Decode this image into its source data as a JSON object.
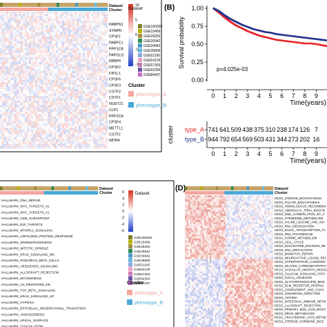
{
  "colors": {
    "heat_low": "#1f3fc4",
    "heat_mid": "#ffffff",
    "heat_high": "#d7301f",
    "dataset_strip": "#c7a46a",
    "cluster_a": "#f4a6a0",
    "cluster_b": "#4aa8d8",
    "km_type_a": "#e8252a",
    "km_type_b": "#25348c",
    "panel_border": "#000000"
  },
  "panel_a": {
    "top_labels": [
      "Dataset",
      "Cluster"
    ],
    "genes": [
      "PABPN1",
      "SYMPK",
      "CPSF1",
      "PABPC1",
      "PPP1CB",
      "PAPOLG",
      "RBBP6",
      "CPSF2",
      "FIP1L1",
      "CPSF6",
      "CPSF3",
      "CSTF3",
      "CSTF1",
      "NUDT21",
      "CLP1",
      "PPP1CA",
      "CPSF4",
      "METTL1",
      "CSTF2",
      "WDR4"
    ],
    "scale_ticks": [
      "10",
      "5",
      "0",
      "-5",
      "-10"
    ],
    "dataset_legend": [
      {
        "name": "GSE100935",
        "color": "#7f7f2a"
      },
      {
        "name": "GSE15459",
        "color": "#b5b300"
      },
      {
        "name": "GSE26253",
        "color": "#a58b3e"
      },
      {
        "name": "GSE26942",
        "color": "#2e8b57"
      },
      {
        "name": "GSE34942",
        "color": "#4a9ac9"
      },
      {
        "name": "GSE35809",
        "color": "#66b8e0"
      },
      {
        "name": "GSE51105",
        "color": "#8aa8d8"
      },
      {
        "name": "GSE54129",
        "color": "#e8a0c8"
      },
      {
        "name": "GSE57303",
        "color": "#c97ab5"
      },
      {
        "name": "GSE62254",
        "color": "#6a51a3"
      },
      {
        "name": "GSE84437",
        "color": "#c46ec9"
      }
    ],
    "cluster_legend_title": "Cluster",
    "cluster_legend": [
      {
        "name": "phenotype_A",
        "color": "#f4a6a0"
      },
      {
        "name": "phenotype_B",
        "color": "#4aa8d8"
      }
    ]
  },
  "panel_b": {
    "letter": "(B)",
    "ylabel": "Survival probability",
    "xlabel": "Time(years)",
    "y_ticks": [
      "1.00",
      "0.75",
      "0.50",
      "0.25",
      "0.00"
    ],
    "x_ticks": [
      "0",
      "1",
      "2",
      "3",
      "4",
      "5",
      "6",
      "7",
      "8",
      "9"
    ],
    "pvalue": "p=4.025e-03",
    "risk_title": "cluster",
    "risk_rows": [
      {
        "label": "type_A",
        "color": "#e8252a",
        "values": [
          "741",
          "641",
          "509",
          "438",
          "375",
          "310",
          "238",
          "174",
          "126",
          "7"
        ]
      },
      {
        "label": "type_B",
        "color": "#25348c",
        "values": [
          "944",
          "792",
          "654",
          "569",
          "503",
          "431",
          "344",
          "273",
          "202",
          "16"
        ]
      }
    ],
    "risk_xlabel": "Time(years)"
  },
  "panel_c": {
    "top_labels": [
      "Dataset",
      "Cluster"
    ],
    "pathways": [
      "HALLMARK_DNA_REPAIR",
      "HALLMARK_MYC_TARGETS_V2",
      "HALLMARK_MYC_TARGETS_V1",
      "HALLMARK_G2M_CHECKPOINT",
      "HALLMARK_E2F_TARGETS",
      "HALLMARK_MTORC1_SIGNALING",
      "HALLMARK_UNFOLDED_PROTEIN_RESPONSE",
      "HALLMARK_SPERMATOGENESIS",
      "HALLMARK_MITOTIC_SPINDLE",
      "HALLMARK_KRAS_SIGNALING_DN",
      "HALLMARK_PANCREAS_BETA_CELLS",
      "HALLMARK_HEDGEHOG_SIGNALING",
      "HALLMARK_ALLOGRAFT_REJECTION",
      "HALLMARK_MYOGENESIS",
      "HALLMARK_UV_RESPONSE_DN",
      "HALLMARK_TGF_BETA_SIGNALING",
      "HALLMARK_KRAS_SIGNALING_UP",
      "HALLMARK_HYPOXIA",
      "HALLMARK_EPITHELIAL_MESENCHYMAL_TRANSITION",
      "HALLMARK_ANGIOGENESIS",
      "HALLMARK_APICAL_SURFACE",
      "HALLMARK_COAGULATION"
    ],
    "scale_ticks": [
      "6",
      "4",
      "2",
      "0",
      "-2",
      "-4",
      "-6"
    ],
    "dataset_legend": [
      {
        "name": "GSE100935",
        "color": "#7f7f2a"
      },
      {
        "name": "GSE15459",
        "color": "#b5b300"
      },
      {
        "name": "GSE26253",
        "color": "#a58b3e"
      },
      {
        "name": "GSE26942",
        "color": "#2e8b57"
      },
      {
        "name": "GSE34942",
        "color": "#4a9ac9"
      },
      {
        "name": "GSE35809",
        "color": "#66b8e0"
      },
      {
        "name": "GSE51105",
        "color": "#8aa8d8"
      },
      {
        "name": "GSE54129",
        "color": "#e8a0c8"
      },
      {
        "name": "GSE57303",
        "color": "#c97ab5"
      },
      {
        "name": "GSE62254",
        "color": "#6a51a3"
      },
      {
        "name": "GSE84437",
        "color": "#c46ec9"
      }
    ],
    "cluster_legend_title": "Cluster",
    "cluster_legend": [
      {
        "name": "phenotype_A",
        "color": "#f4a6a0"
      },
      {
        "name": "phenotype_B",
        "color": "#4aa8d8"
      }
    ]
  },
  "panel_d": {
    "letter": "(D)",
    "top_labels": [
      "Dataset",
      "Cluster"
    ],
    "pathways": [
      "KEGG_STEROID_BIOSYNTHESIS",
      "KEGG_FOLATE_BIOSYNTHESIS",
      "KEGG_HOMOLOGOUS_RECOMBINA",
      "KEGG_AMINOACYL_TRNA_BIOSYN",
      "KEGG_ONE_CARBON_POOL_BY_F",
      "KEGG_PYRIMIDINE_METABOLISM",
      "KEGG_VALINE_LEUCINE_AND_ISO",
      "KEGG_RNA_DEGRADATION",
      "KEGG_BASAL_TRANSCRIPTION_FA",
      "KEGG_RNA_POLYMERASE",
      "KEGG_PURINE_METABOLISM",
      "KEGG_CELL_CYCLE",
      "KEGG_NUCLEOTIDE_EXCISION_RE",
      "KEGG_DNA_REPLICATION",
      "KEGG_MISMATCH_REPAIR",
      "KEGG_NEUROACTIVE_LIGAND_REC",
      "KEGG_HYPERTROPHIC_CARDIOMY",
      "KEGG_DILATED_CARDIOMYOPATHY",
      "KEGG_VASCULAR_SMOOTH_MUSCL",
      "KEGG_CALCIUM_SIGNALING_PATH",
      "KEGG_FOCAL_ADHESION",
      "KEGG_GLYCOSPHINGOLIPID_BIOS",
      "KEGG_ECM_RECEPTOR_INTERAC",
      "KEGG_COMPLEMENT_AND_COAG",
      "KEGG_LEISHMANIA_INFECTION",
      "KEGG_ASTHMA",
      "KEGG_INTESTINAL_IMMUNE_NETW",
      "KEGG_ALLOGRAFT_REJECTION",
      "KEGG_PRIMARY_BILE_ACID_BIOSY",
      "KEGG_DRUG_METABOLISM",
      "KEGG_ARACHIDONIC_ACID_METAB",
      "KEGG_STEROID_HORMONE_BIOS"
    ]
  },
  "chart_data": [
    {
      "type": "heatmap",
      "panel": "A",
      "rows": [
        "PABPN1",
        "SYMPK",
        "CPSF1",
        "PABPC1",
        "PPP1CB",
        "PAPOLG",
        "RBBP6",
        "CPSF2",
        "FIP1L1",
        "CPSF6",
        "CPSF3",
        "CSTF3",
        "CSTF1",
        "NUDT21",
        "CLP1",
        "PPP1CA",
        "CPSF4",
        "METTL1",
        "CSTF2",
        "WDR4"
      ],
      "color_scale": [
        -10,
        10
      ]
    },
    {
      "type": "line",
      "panel": "B",
      "xlabel": "Time(years)",
      "ylabel": "Survival probability",
      "xlim": [
        0,
        10
      ],
      "ylim": [
        0,
        1
      ],
      "series": [
        {
          "name": "type_A",
          "x": [
            0,
            0.5,
            1,
            1.5,
            2,
            2.5,
            3,
            3.5,
            4,
            4.5,
            5,
            5.5,
            6,
            6.5,
            7,
            7.5,
            8,
            8.5,
            9,
            10
          ],
          "y": [
            1.0,
            0.94,
            0.87,
            0.81,
            0.76,
            0.72,
            0.68,
            0.65,
            0.62,
            0.6,
            0.58,
            0.56,
            0.55,
            0.54,
            0.53,
            0.52,
            0.51,
            0.51,
            0.5,
            0.47
          ]
        },
        {
          "name": "type_B",
          "x": [
            0,
            0.5,
            1,
            1.5,
            2,
            2.5,
            3,
            3.5,
            4,
            4.5,
            5,
            5.5,
            6,
            6.5,
            7,
            7.5,
            8,
            8.5,
            9,
            10
          ],
          "y": [
            1.0,
            0.96,
            0.9,
            0.85,
            0.81,
            0.77,
            0.74,
            0.71,
            0.69,
            0.67,
            0.66,
            0.64,
            0.63,
            0.62,
            0.61,
            0.6,
            0.59,
            0.58,
            0.57,
            0.55
          ]
        }
      ]
    },
    {
      "type": "heatmap",
      "panel": "C",
      "rows": [
        "HALLMARK_DNA_REPAIR",
        "HALLMARK_MYC_TARGETS_V2",
        "HALLMARK_MYC_TARGETS_V1",
        "HALLMARK_G2M_CHECKPOINT",
        "HALLMARK_E2F_TARGETS",
        "HALLMARK_MTORC1_SIGNALING",
        "HALLMARK_UNFOLDED_PROTEIN_RESPONSE",
        "HALLMARK_SPERMATOGENESIS",
        "HALLMARK_MITOTIC_SPINDLE",
        "HALLMARK_KRAS_SIGNALING_DN",
        "HALLMARK_PANCREAS_BETA_CELLS",
        "HALLMARK_HEDGEHOG_SIGNALING",
        "HALLMARK_ALLOGRAFT_REJECTION",
        "HALLMARK_MYOGENESIS",
        "HALLMARK_UV_RESPONSE_DN",
        "HALLMARK_TGF_BETA_SIGNALING",
        "HALLMARK_KRAS_SIGNALING_UP",
        "HALLMARK_HYPOXIA",
        "HALLMARK_EPITHELIAL_MESENCHYMAL_TRANSITION",
        "HALLMARK_ANGIOGENESIS",
        "HALLMARK_APICAL_SURFACE",
        "HALLMARK_COAGULATION"
      ],
      "color_scale": [
        -6,
        6
      ]
    },
    {
      "type": "heatmap",
      "panel": "D",
      "rows": [
        "KEGG_STEROID_BIOSYNTHESIS",
        "KEGG_FOLATE_BIOSYNTHESIS",
        "KEGG_HOMOLOGOUS_RECOMBINA",
        "KEGG_AMINOACYL_TRNA_BIOSYN",
        "KEGG_ONE_CARBON_POOL_BY_F",
        "KEGG_PYRIMIDINE_METABOLISM",
        "KEGG_VALINE_LEUCINE_AND_ISO",
        "KEGG_RNA_DEGRADATION",
        "KEGG_BASAL_TRANSCRIPTION_FA",
        "KEGG_RNA_POLYMERASE",
        "KEGG_PURINE_METABOLISM",
        "KEGG_CELL_CYCLE",
        "KEGG_NUCLEOTIDE_EXCISION_RE",
        "KEGG_DNA_REPLICATION",
        "KEGG_MISMATCH_REPAIR",
        "KEGG_NEUROACTIVE_LIGAND_REC",
        "KEGG_HYPERTROPHIC_CARDIOMY",
        "KEGG_DILATED_CARDIOMYOPATHY",
        "KEGG_VASCULAR_SMOOTH_MUSCL",
        "KEGG_CALCIUM_SIGNALING_PATH",
        "KEGG_FOCAL_ADHESION",
        "KEGG_GLYCOSPHINGOLIPID_BIOS",
        "KEGG_ECM_RECEPTOR_INTERAC",
        "KEGG_COMPLEMENT_AND_COAG",
        "KEGG_LEISHMANIA_INFECTION",
        "KEGG_ASTHMA",
        "KEGG_INTESTINAL_IMMUNE_NETW",
        "KEGG_ALLOGRAFT_REJECTION",
        "KEGG_PRIMARY_BILE_ACID_BIOSY",
        "KEGG_DRUG_METABOLISM",
        "KEGG_ARACHIDONIC_ACID_METAB",
        "KEGG_STEROID_HORMONE_BIOS"
      ]
    }
  ]
}
